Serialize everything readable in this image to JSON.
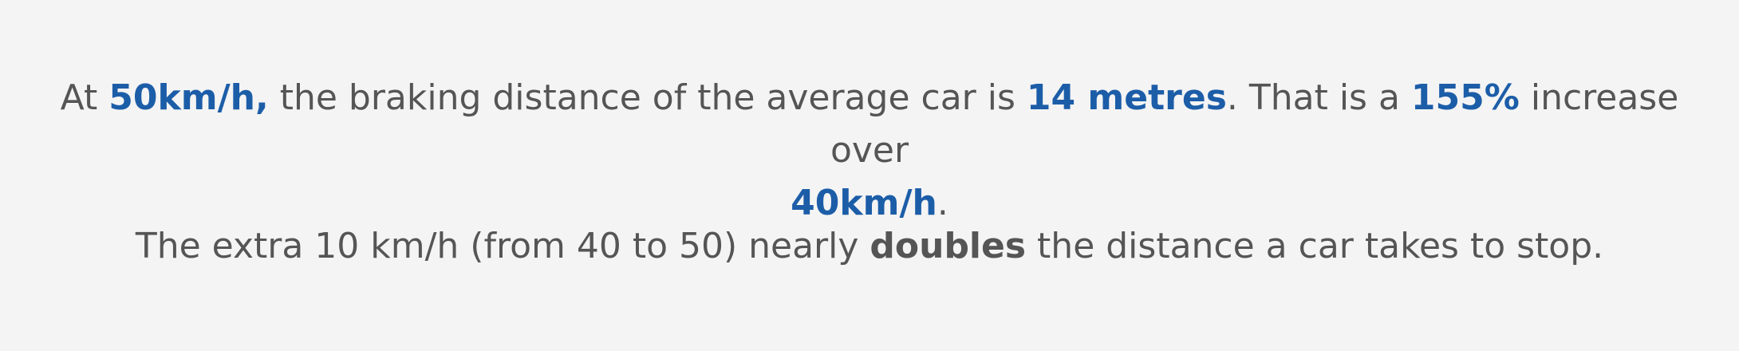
{
  "colors": {
    "background": "#f4f4f4",
    "text": "#555555",
    "highlight": "#1c5da8",
    "emphasis": "#555555"
  },
  "paragraph_1": {
    "t1": "At ",
    "speed_50": "50km/h,",
    "t2": " the braking distance of the average car is ",
    "distance": "14 metres",
    "t3": ". That is a ",
    "percent": "155%",
    "t4": " increase over ",
    "speed_40": "40km/h",
    "t5": "."
  },
  "paragraph_2": {
    "t1": "The extra 10 km/h (from 40 to 50) nearly ",
    "emphasis": "doubles",
    "t2": " the distance a car takes to stop."
  }
}
